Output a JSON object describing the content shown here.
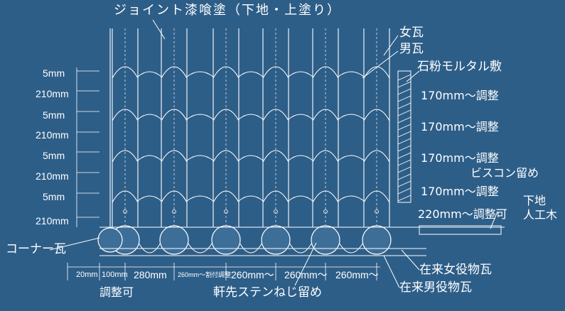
{
  "colors": {
    "background": "#2d5e88",
    "line": "#ffffff",
    "tile_fill": "#3c6e98"
  },
  "title": "ジョイント漆喰塗（下地・上塗り）",
  "labels": {
    "female_tile": "女瓦",
    "male_tile": "男瓦",
    "stone_mortar": "石粉モルタル敷",
    "screw_fixing": "ビスコン留め",
    "base": "下地",
    "artificial_wood": "人工木",
    "corner_tile": "コーナー瓦",
    "existing_female": "在来女役物瓦",
    "existing_male": "在来男役物瓦",
    "adjustable": "調整可",
    "eaves_screw": "軒先ステンねじ留め"
  },
  "left_dims": [
    "5mm",
    "210mm",
    "5mm",
    "210mm",
    "5mm",
    "210mm",
    "5mm",
    "210mm"
  ],
  "right_dims": [
    "170mm～調整",
    "170mm～調整",
    "170mm～調整",
    "170mm～調整",
    "220mm～調整可"
  ],
  "bottom_dims": [
    "20mm",
    "100mm",
    "280mm",
    "260mm～割付調整",
    "260mm～",
    "260mm～",
    "260mm～"
  ]
}
